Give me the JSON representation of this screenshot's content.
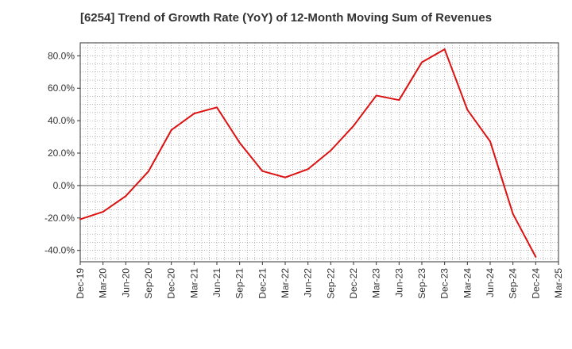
{
  "chart_data": {
    "type": "line",
    "title": "[6254]  Trend of Growth Rate (YoY) of 12-Month Moving Sum of Revenues",
    "xlabel": "",
    "ylabel": "",
    "x_tick_labels": [
      "Dec-19",
      "Mar-20",
      "Jun-20",
      "Sep-20",
      "Dec-20",
      "Mar-21",
      "Jun-21",
      "Sep-21",
      "Dec-21",
      "Mar-22",
      "Jun-22",
      "Sep-22",
      "Dec-22",
      "Mar-23",
      "Jun-23",
      "Sep-23",
      "Dec-23",
      "Mar-24",
      "Jun-24",
      "Sep-24",
      "Dec-24",
      "Mar-25"
    ],
    "y_tick_values": [
      -40,
      -20,
      0,
      20,
      40,
      60,
      80
    ],
    "y_tick_labels": [
      "-40.0%",
      "-20.0%",
      "0.0%",
      "20.0%",
      "40.0%",
      "60.0%",
      "80.0%"
    ],
    "ylim": [
      -47,
      88
    ],
    "grid": true,
    "series": [
      {
        "name": "",
        "color": "#dd1111",
        "x": [
          "Dec-19",
          "Mar-20",
          "Jun-20",
          "Sep-20",
          "Dec-20",
          "Mar-21",
          "Jun-21",
          "Sep-21",
          "Dec-21",
          "Mar-22",
          "Jun-22",
          "Sep-22",
          "Dec-22",
          "Mar-23",
          "Jun-23",
          "Sep-23",
          "Dec-23",
          "Mar-24",
          "Jun-24",
          "Sep-24",
          "Dec-24"
        ],
        "values": [
          -20.8,
          -16.2,
          -6.5,
          8.8,
          34.2,
          44.4,
          48.2,
          26.4,
          8.9,
          5.0,
          10.1,
          21.6,
          36.8,
          55.5,
          52.7,
          76.0,
          84.0,
          46.7,
          27.2,
          -17.5,
          -44.0
        ]
      }
    ]
  }
}
